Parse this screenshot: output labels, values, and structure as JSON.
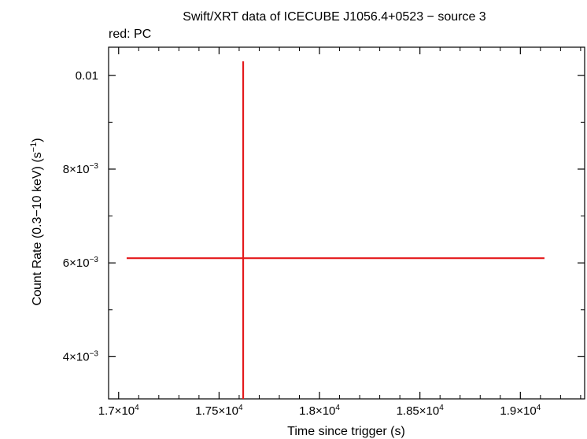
{
  "title": "Swift/XRT data of ICECUBE J1056.4+0523 − source 3",
  "subtitle": "red: PC",
  "xlabel": "Time since trigger (s)",
  "ylabel": "Count Rate (0.3−10 keV) (s",
  "ylabel_sup": "−1",
  "ylabel_tail": ")",
  "colors": {
    "series": "#e41a1c",
    "frame": "#000000"
  },
  "chart_data": {
    "type": "scatter",
    "title": "Swift/XRT data of ICECUBE J1056.4+0523 − source 3",
    "xlabel": "Time since trigger (s)",
    "ylabel": "Count Rate (0.3−10 keV) (s⁻¹)",
    "xlim": [
      16950,
      19320
    ],
    "ylim": [
      0.0031,
      0.0106
    ],
    "x_ticks": [
      {
        "value": 17000,
        "mant": "1.7",
        "exp": "4"
      },
      {
        "value": 17500,
        "mant": "1.75",
        "exp": "4"
      },
      {
        "value": 18000,
        "mant": "1.8",
        "exp": "4"
      },
      {
        "value": 18500,
        "mant": "1.85",
        "exp": "4"
      },
      {
        "value": 19000,
        "mant": "1.9",
        "exp": "4"
      }
    ],
    "y_ticks": [
      {
        "value": 0.004,
        "mant": "4",
        "exp": "−3"
      },
      {
        "value": 0.006,
        "mant": "6",
        "exp": "−3"
      },
      {
        "value": 0.008,
        "mant": "8",
        "exp": "−3"
      },
      {
        "value": 0.01,
        "mant": "0.01",
        "exp": ""
      }
    ],
    "series": [
      {
        "color": "#e41a1c",
        "points": [
          {
            "x": 17620,
            "xerr_low": 580,
            "xerr_high": 1500,
            "y": 0.0061,
            "yerr_low": 0.003,
            "yerr_high": 0.0042
          }
        ]
      }
    ]
  }
}
